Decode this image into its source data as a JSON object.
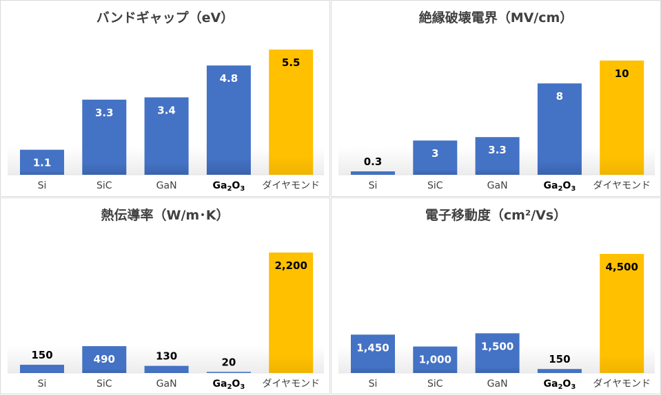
{
  "colors": {
    "normal": "#4472C4",
    "highlight": "#FFC000",
    "title": "#404040"
  },
  "chart_data": [
    {
      "type": "bar",
      "title": "バンドギャップ（eV）",
      "categories": [
        "Si",
        "SiC",
        "GaN",
        "Ga2O3",
        "ダイヤモンド"
      ],
      "values": [
        1.1,
        3.3,
        3.4,
        4.8,
        5.5
      ],
      "labels": [
        "1.1",
        "3.3",
        "3.4",
        "4.8",
        "5.5"
      ],
      "ylim": [
        0,
        5.5
      ],
      "highlight": 4
    },
    {
      "type": "bar",
      "title": "絶縁破壊電界（MV/cm）",
      "categories": [
        "Si",
        "SiC",
        "GaN",
        "Ga2O3",
        "ダイヤモンド"
      ],
      "values": [
        0.3,
        3,
        3.3,
        8,
        10
      ],
      "labels": [
        "0.3",
        "3",
        "3.3",
        "8",
        "10"
      ],
      "ylim": [
        0,
        10
      ],
      "highlight": 4
    },
    {
      "type": "bar",
      "title": "熱伝導率（W/m･K）",
      "categories": [
        "Si",
        "SiC",
        "GaN",
        "Ga2O3",
        "ダイヤモンド"
      ],
      "values": [
        150,
        490,
        130,
        20,
        2200
      ],
      "labels": [
        "150",
        "490",
        "130",
        "20",
        "2,200"
      ],
      "ylim": [
        0,
        2200
      ],
      "highlight": 4
    },
    {
      "type": "bar",
      "title": "電子移動度（cm²/Vs）",
      "categories": [
        "Si",
        "SiC",
        "GaN",
        "Ga2O3",
        "ダイヤモンド"
      ],
      "values": [
        1450,
        1000,
        1500,
        150,
        4500
      ],
      "labels": [
        "1,450",
        "1,000",
        "1,500",
        "150",
        "4,500"
      ],
      "ylim": [
        0,
        4500
      ],
      "highlight": 4
    }
  ]
}
